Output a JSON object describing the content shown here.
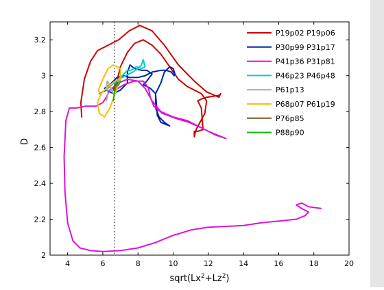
{
  "chart_data": {
    "type": "line",
    "xlabel": "sqrt(Lx²+Lz²)",
    "xlabel_parts": {
      "pre": "sqrt(Lx",
      "sup1": "2",
      "mid": "+Lz",
      "sup2": "2",
      "post": ")"
    },
    "ylabel": "D",
    "xlim": [
      3,
      20
    ],
    "ylim": [
      2,
      3.3
    ],
    "xticks": [
      4,
      6,
      8,
      10,
      12,
      14,
      16,
      18,
      20
    ],
    "yticks": [
      2,
      2.2,
      2.4,
      2.6,
      2.8,
      3,
      3.2
    ],
    "grid": false,
    "legend_position": "top-right",
    "reference_line": {
      "x": 6.65,
      "style": "dotted",
      "color": "#000000"
    },
    "series": [
      {
        "name": "P19p02 P19p06",
        "color": "#cc0000",
        "points": [
          [
            4.8,
            2.77
          ],
          [
            4.75,
            2.85
          ],
          [
            4.95,
            2.98
          ],
          [
            5.3,
            3.08
          ],
          [
            5.7,
            3.14
          ],
          [
            6.3,
            3.17
          ],
          [
            6.9,
            3.2
          ],
          [
            7.5,
            3.25
          ],
          [
            8.1,
            3.28
          ],
          [
            8.8,
            3.25
          ],
          [
            9.5,
            3.17
          ],
          [
            10.3,
            3.06
          ],
          [
            11.2,
            2.97
          ],
          [
            11.9,
            2.91
          ],
          [
            12.6,
            2.88
          ],
          [
            12.7,
            2.9
          ],
          [
            12.6,
            2.89
          ],
          [
            11.9,
            2.88
          ],
          [
            11.6,
            2.87
          ],
          [
            11.4,
            2.86
          ],
          [
            11.6,
            2.82
          ],
          [
            11.7,
            2.7
          ],
          [
            11.4,
            2.69
          ],
          [
            11.2,
            2.69
          ],
          [
            11.2,
            2.66
          ],
          [
            11.3,
            2.7
          ],
          [
            11.8,
            2.79
          ],
          [
            11.9,
            2.86
          ],
          [
            11.6,
            2.9
          ],
          [
            11.2,
            2.92
          ],
          [
            10.8,
            2.94
          ],
          [
            10.3,
            2.98
          ],
          [
            9.8,
            3.05
          ],
          [
            9.3,
            3.12
          ],
          [
            8.8,
            3.17
          ],
          [
            8.3,
            3.2
          ],
          [
            7.8,
            3.18
          ],
          [
            7.4,
            3.13
          ],
          [
            7.0,
            3.05
          ],
          [
            6.8,
            2.97
          ],
          [
            6.6,
            2.92
          ]
        ]
      },
      {
        "name": "P30p99 P31p17",
        "color": "#0022aa",
        "points": [
          [
            5.8,
            2.9
          ],
          [
            6.2,
            2.92
          ],
          [
            6.6,
            2.9
          ],
          [
            7.0,
            2.92
          ],
          [
            7.4,
            2.96
          ],
          [
            7.4,
            3.02
          ],
          [
            7.55,
            3.06
          ],
          [
            7.8,
            3.04
          ],
          [
            8.2,
            3.03
          ],
          [
            8.5,
            3.03
          ],
          [
            8.8,
            3.01
          ],
          [
            8.5,
            2.97
          ],
          [
            8.3,
            2.95
          ],
          [
            8.7,
            2.93
          ],
          [
            9.0,
            2.9
          ],
          [
            9.0,
            2.82
          ],
          [
            9.2,
            2.77
          ],
          [
            9.5,
            2.74
          ],
          [
            9.8,
            2.72
          ],
          [
            9.3,
            2.74
          ],
          [
            9.1,
            2.78
          ],
          [
            9.0,
            2.9
          ],
          [
            9.3,
            2.96
          ],
          [
            9.5,
            3.02
          ],
          [
            9.8,
            3.05
          ],
          [
            10.0,
            3.04
          ],
          [
            10.1,
            3.01
          ],
          [
            10.05,
            3.0
          ],
          [
            9.9,
            3.02
          ],
          [
            9.6,
            3.03
          ],
          [
            9.3,
            3.03
          ],
          [
            8.8,
            3.02
          ],
          [
            8.4,
            3.0
          ],
          [
            8.0,
            2.99
          ],
          [
            7.5,
            2.99
          ],
          [
            7.2,
            3.0
          ],
          [
            6.8,
            2.99
          ],
          [
            6.4,
            2.95
          ],
          [
            6.1,
            2.93
          ]
        ]
      },
      {
        "name": "P41p36 P31p81",
        "color": "#dd11dd",
        "points": [
          [
            6.7,
            2.92
          ],
          [
            7.2,
            2.95
          ],
          [
            7.8,
            2.97
          ],
          [
            8.3,
            2.97
          ],
          [
            8.6,
            2.93
          ],
          [
            8.7,
            2.88
          ],
          [
            8.9,
            2.83
          ],
          [
            9.4,
            2.79
          ],
          [
            10.2,
            2.76
          ],
          [
            10.9,
            2.74
          ],
          [
            11.6,
            2.71
          ],
          [
            12.0,
            2.69
          ],
          [
            12.4,
            2.67
          ],
          [
            13.0,
            2.65
          ],
          [
            12.5,
            2.67
          ],
          [
            12.0,
            2.69
          ],
          [
            11.6,
            2.71
          ],
          [
            10.8,
            2.75
          ],
          [
            10.0,
            2.77
          ],
          [
            9.3,
            2.8
          ],
          [
            8.8,
            2.86
          ],
          [
            8.4,
            2.93
          ],
          [
            8.0,
            2.97
          ],
          [
            7.4,
            2.98
          ],
          [
            6.9,
            2.96
          ],
          [
            6.4,
            2.92
          ],
          [
            6.2,
            2.88
          ],
          [
            6.0,
            2.85
          ],
          [
            5.6,
            2.83
          ],
          [
            5.0,
            2.83
          ],
          [
            4.5,
            2.82
          ],
          [
            4.1,
            2.82
          ],
          [
            3.9,
            2.75
          ],
          [
            3.8,
            2.55
          ],
          [
            3.85,
            2.35
          ],
          [
            4.0,
            2.18
          ],
          [
            4.3,
            2.08
          ],
          [
            4.7,
            2.04
          ],
          [
            5.3,
            2.025
          ],
          [
            6.0,
            2.02
          ],
          [
            7.0,
            2.025
          ],
          [
            8.0,
            2.04
          ],
          [
            9.0,
            2.07
          ],
          [
            10.0,
            2.11
          ],
          [
            11.0,
            2.14
          ],
          [
            12.0,
            2.155
          ],
          [
            13.0,
            2.16
          ],
          [
            14.0,
            2.165
          ],
          [
            15.0,
            2.18
          ],
          [
            16.0,
            2.19
          ],
          [
            17.0,
            2.2
          ],
          [
            17.5,
            2.22
          ],
          [
            17.7,
            2.24
          ],
          [
            17.3,
            2.26
          ],
          [
            17.0,
            2.28
          ],
          [
            17.3,
            2.29
          ],
          [
            17.7,
            2.27
          ],
          [
            18.4,
            2.26
          ]
        ]
      },
      {
        "name": "P46p23 P46p48",
        "color": "#00cccc",
        "points": [
          [
            6.2,
            2.92
          ],
          [
            6.5,
            2.95
          ],
          [
            6.9,
            2.98
          ],
          [
            7.3,
            3.0
          ],
          [
            7.7,
            3.02
          ],
          [
            8.0,
            3.04
          ],
          [
            8.2,
            3.06
          ],
          [
            8.3,
            3.09
          ],
          [
            8.4,
            3.05
          ],
          [
            8.2,
            3.04
          ],
          [
            7.9,
            3.05
          ],
          [
            7.6,
            3.03
          ],
          [
            7.4,
            3.03
          ],
          [
            7.1,
            3.0
          ],
          [
            6.9,
            2.97
          ],
          [
            6.7,
            2.95
          ]
        ]
      },
      {
        "name": "P61p13",
        "color": "#a8a8a8",
        "points": [
          [
            6.2,
            2.86
          ],
          [
            6.3,
            2.9
          ],
          [
            6.2,
            2.94
          ],
          [
            6.25,
            2.97
          ],
          [
            6.4,
            2.95
          ],
          [
            6.5,
            2.92
          ],
          [
            6.6,
            2.9
          ]
        ]
      },
      {
        "name": "P68p07 P61p19",
        "color": "#ffbb00",
        "points": [
          [
            5.9,
            2.89
          ],
          [
            5.75,
            2.92
          ],
          [
            6.0,
            2.98
          ],
          [
            6.3,
            3.04
          ],
          [
            6.6,
            3.06
          ],
          [
            7.0,
            3.04
          ],
          [
            7.0,
            2.98
          ],
          [
            6.7,
            2.9
          ],
          [
            6.4,
            2.82
          ],
          [
            6.1,
            2.77
          ],
          [
            5.8,
            2.79
          ],
          [
            5.7,
            2.85
          ],
          [
            5.9,
            2.9
          ],
          [
            6.3,
            2.94
          ],
          [
            6.7,
            2.97
          ],
          [
            6.9,
            2.98
          ]
        ]
      },
      {
        "name": "P76p85",
        "color": "#775522",
        "points": [
          [
            6.6,
            2.93
          ],
          [
            6.7,
            2.95
          ],
          [
            6.85,
            2.96
          ]
        ]
      },
      {
        "name": "P88p90",
        "color": "#00bb00",
        "points": [
          [
            6.6,
            2.86
          ],
          [
            6.65,
            2.9
          ],
          [
            6.75,
            2.94
          ],
          [
            6.9,
            2.95
          ],
          [
            7.0,
            2.97
          ]
        ]
      }
    ]
  }
}
